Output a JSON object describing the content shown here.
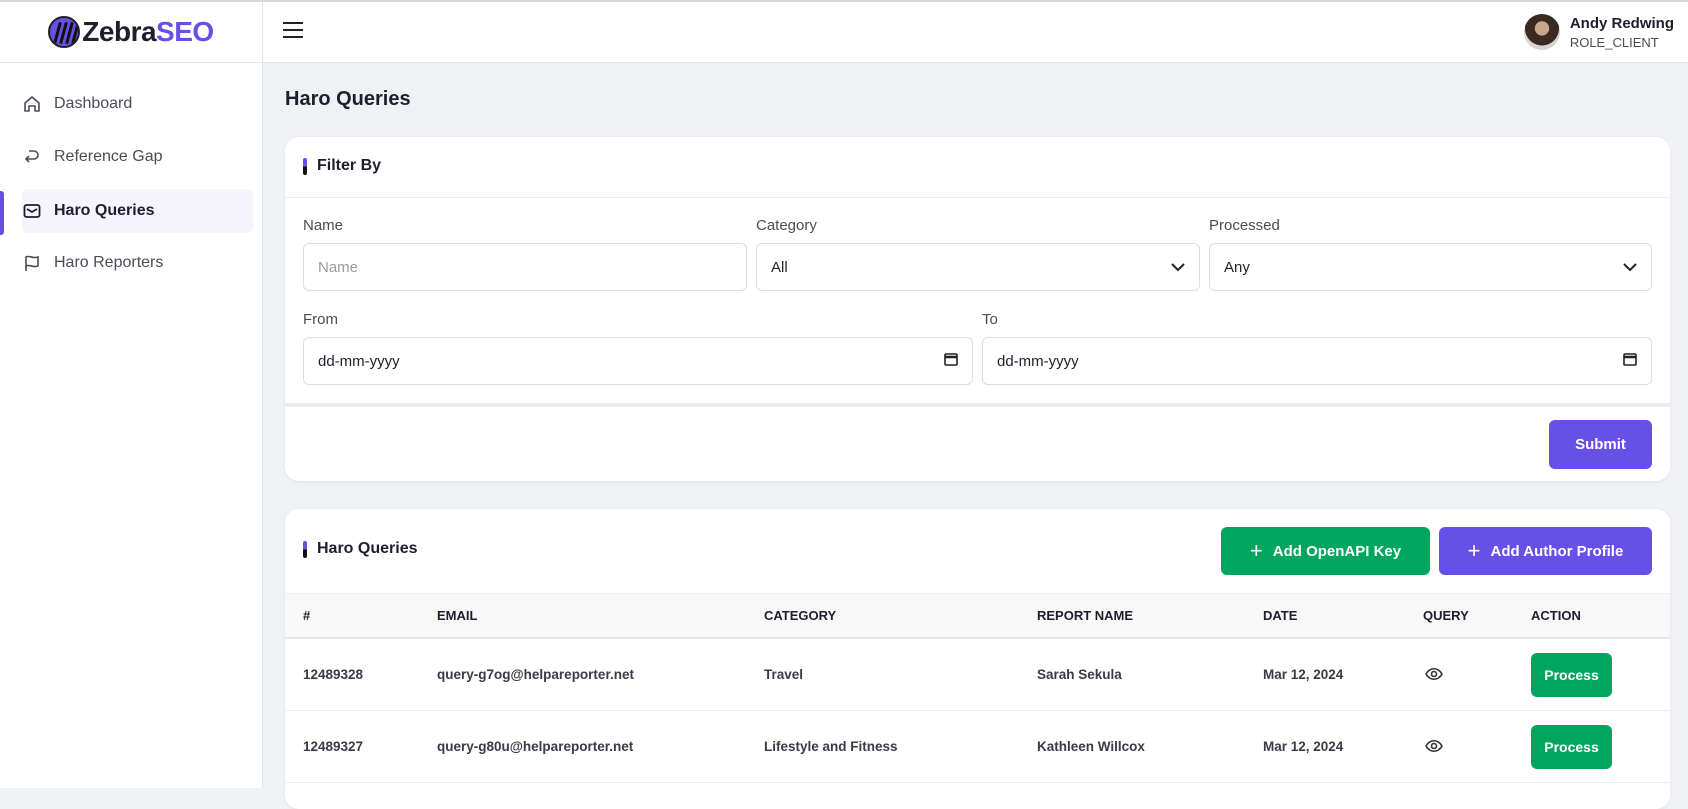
{
  "brand": {
    "name_a": "Zebra",
    "name_b": "SEO"
  },
  "user": {
    "name": "Andy Redwing",
    "role": "ROLE_CLIENT"
  },
  "sidebar": {
    "items": [
      {
        "label": "Dashboard",
        "icon": "home-icon"
      },
      {
        "label": "Reference Gap",
        "icon": "return-arrow-icon"
      },
      {
        "label": "Haro Queries",
        "icon": "mail-icon",
        "active": true
      },
      {
        "label": "Haro Reporters",
        "icon": "flag-icon"
      }
    ]
  },
  "page": {
    "title": "Haro Queries"
  },
  "filter": {
    "title": "Filter By",
    "name_label": "Name",
    "name_placeholder": "Name",
    "category_label": "Category",
    "category_value": "All",
    "processed_label": "Processed",
    "processed_value": "Any",
    "from_label": "From",
    "from_value": "dd-mm-yyyy",
    "to_label": "To",
    "to_value": "dd-mm-yyyy",
    "submit": "Submit"
  },
  "table": {
    "title": "Haro Queries",
    "add_key": "Add OpenAPI Key",
    "add_profile": "Add Author Profile",
    "headers": [
      "#",
      "EMAIL",
      "CATEGORY",
      "REPORT NAME",
      "DATE",
      "QUERY",
      "ACTION"
    ],
    "rows": [
      {
        "id": "12489328",
        "email": "query-g7og@helpareporter.net",
        "category": "Travel",
        "reporter": "Sarah Sekula",
        "date": "Mar 12, 2024",
        "action": "Process"
      },
      {
        "id": "12489327",
        "email": "query-g80u@helpareporter.net",
        "category": "Lifestyle and Fitness",
        "reporter": "Kathleen Willcox",
        "date": "Mar 12, 2024",
        "action": "Process"
      }
    ]
  },
  "colors": {
    "accent": "#6750e8",
    "success": "#00a65e",
    "background": "#f0f1f5"
  }
}
